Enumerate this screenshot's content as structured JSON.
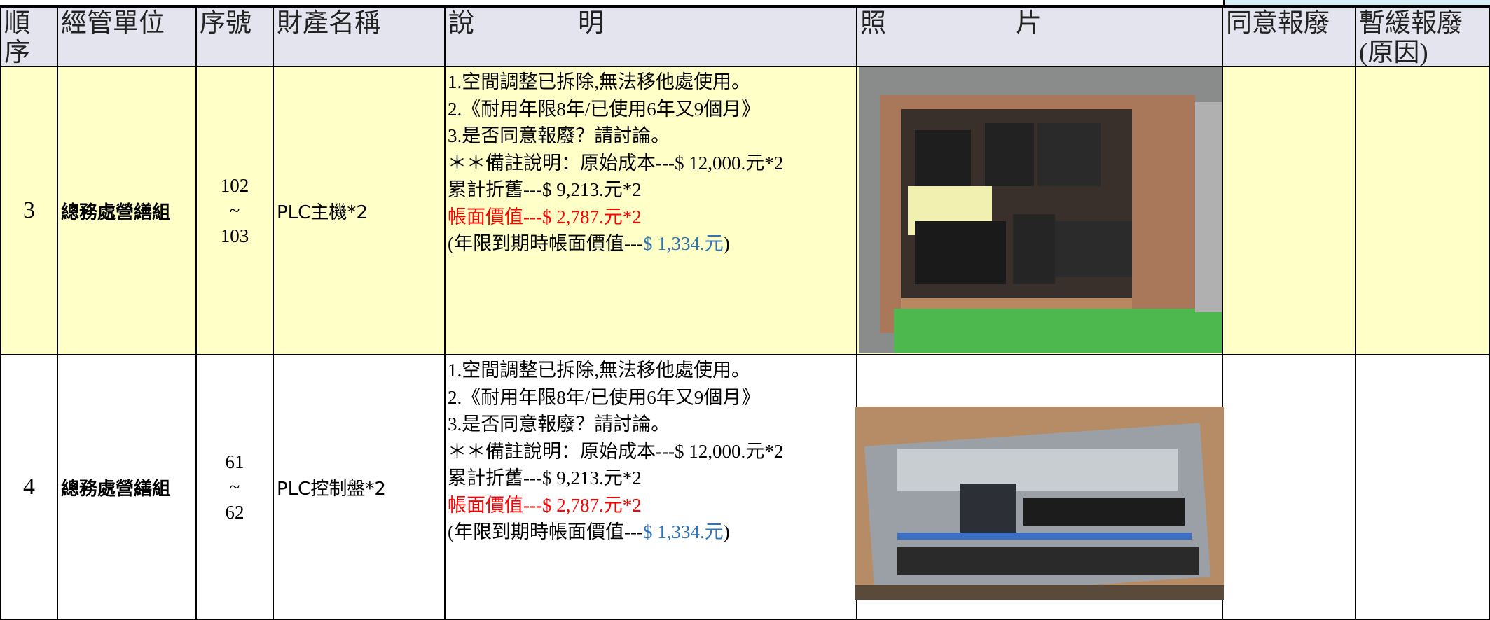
{
  "table": {
    "header": [
      [
        "順",
        "序"
      ],
      [
        "經管單位"
      ],
      [
        "序號"
      ],
      [
        "財產名稱"
      ],
      [
        "說　　　　明"
      ],
      [
        "照　　　　　片"
      ],
      [
        "同意報廢"
      ],
      [
        "暫緩報廢",
        "(原因)"
      ]
    ],
    "rows": [
      {
        "order": "3",
        "unit": "總務處營繕組",
        "serial": [
          "102",
          "~",
          "103"
        ],
        "name": "PLC主機*2",
        "description": [
          [
            {
              "text": "1.空間調整已拆除,無法移他處使用。",
              "color": "#000000"
            }
          ],
          [
            {
              "text": "2.《耐用年限8年/已使用6年又9個月》",
              "color": "#000000"
            }
          ],
          [
            {
              "text": "3.是否同意報廢？請討論。",
              "color": "#000000"
            }
          ],
          [
            {
              "text": "＊＊備註說明：原始成本---$ 12,000.元*2",
              "color": "#000000"
            }
          ],
          [
            {
              "text": "累計折舊---$ 9,213.元*2",
              "color": "#000000"
            }
          ],
          [
            {
              "text": "帳面價值---$ 2,787.元*2",
              "color": "#ff0000"
            }
          ],
          [
            {
              "text": "(年限到期時帳面價值---",
              "color": "#000000"
            },
            {
              "text": "$ 1,334.元",
              "color": "#2e75b6"
            },
            {
              "text": ")",
              "color": "#000000"
            }
          ]
        ],
        "background": "#ffffc8"
      },
      {
        "order": "4",
        "unit": "總務處營繕組",
        "serial": [
          "61",
          "~",
          "62"
        ],
        "name": "PLC控制盤*2",
        "description": [
          [
            {
              "text": "1.空間調整已拆除,無法移他處使用。",
              "color": "#000000"
            }
          ],
          [
            {
              "text": "2.《耐用年限8年/已使用6年又9個月》",
              "color": "#000000"
            }
          ],
          [
            {
              "text": "3.是否同意報廢？請討論。",
              "color": "#000000"
            }
          ],
          [
            {
              "text": "＊＊備註說明：原始成本---$ 12,000.元*2",
              "color": "#000000"
            }
          ],
          [
            {
              "text": "累計折舊---$ 9,213.元*2",
              "color": "#000000"
            }
          ],
          [
            {
              "text": "帳面價值---$ 2,787.元*2",
              "color": "#ff0000"
            }
          ],
          [
            {
              "text": "(年限到期時帳面價值---",
              "color": "#000000"
            },
            {
              "text": "$ 1,334.元",
              "color": "#2e75b6"
            },
            {
              "text": ")",
              "color": "#000000"
            }
          ]
        ],
        "background": "#ffffff"
      }
    ]
  }
}
